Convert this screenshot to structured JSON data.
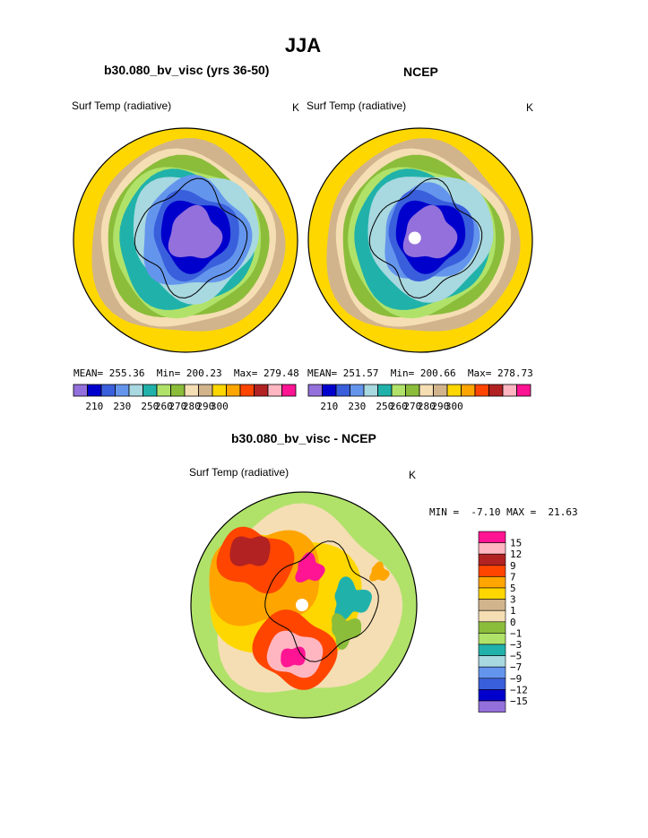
{
  "page": {
    "title": "JJA"
  },
  "panels": [
    {
      "heading": "b30.080_bv_visc (yrs 36-50)",
      "field": "Surf Temp (radiative)",
      "units": "K",
      "stats": {
        "mean_label": "MEAN=",
        "mean": "255.36",
        "min_label": "Min=",
        "min": "200.23",
        "max_label": "Max=",
        "max": "279.48"
      }
    },
    {
      "heading": "NCEP",
      "field": "Surf Temp (radiative)",
      "units": "K",
      "stats": {
        "mean_label": "MEAN=",
        "mean": "251.57",
        "min_label": "Min=",
        "min": "200.66",
        "max_label": "Max=",
        "max": "278.73"
      }
    }
  ],
  "diff_panel": {
    "heading": "b30.080_bv_visc - NCEP",
    "field": "Surf Temp (radiative)",
    "units": "K",
    "min_label": "MIN =",
    "min": "-7.10",
    "max_label": "MAX =",
    "max": "21.63"
  },
  "chart_data": [
    {
      "type": "heatmap",
      "projection": "south polar stereographic",
      "title": "b30.080_bv_visc (yrs 36-50)",
      "field": "Surf Temp (radiative)",
      "units": "K",
      "mean": 255.36,
      "min": 200.23,
      "max": 279.48,
      "colorbar": {
        "tick_labels": [
          "210",
          "230",
          "250",
          "260",
          "270",
          "280",
          "290",
          "300"
        ],
        "colors": [
          "#9370db",
          "#0000cd",
          "#3a5fdc",
          "#6495ed",
          "#a8d8e0",
          "#20b2aa",
          "#b0e26a",
          "#8bbd3b",
          "#f5deb3",
          "#d2b48c",
          "#ffd700",
          "#ffa500",
          "#ff4500",
          "#b22222",
          "#ffb6c1",
          "#ff1493"
        ]
      }
    },
    {
      "type": "heatmap",
      "projection": "south polar stereographic",
      "title": "NCEP",
      "field": "Surf Temp (radiative)",
      "units": "K",
      "mean": 251.57,
      "min": 200.66,
      "max": 278.73,
      "colorbar": {
        "tick_labels": [
          "210",
          "230",
          "250",
          "260",
          "270",
          "280",
          "290",
          "300"
        ],
        "colors": [
          "#9370db",
          "#0000cd",
          "#3a5fdc",
          "#6495ed",
          "#a8d8e0",
          "#20b2aa",
          "#b0e26a",
          "#8bbd3b",
          "#f5deb3",
          "#d2b48c",
          "#ffd700",
          "#ffa500",
          "#ff4500",
          "#b22222",
          "#ffb6c1",
          "#ff1493"
        ]
      }
    },
    {
      "type": "heatmap",
      "projection": "south polar stereographic",
      "title": "b30.080_bv_visc - NCEP",
      "field": "Surf Temp (radiative)",
      "units": "K",
      "min": -7.1,
      "max": 21.63,
      "colorbar": {
        "tick_labels": [
          "15",
          "12",
          "9",
          "7",
          "5",
          "3",
          "1",
          "0",
          "−1",
          "−3",
          "−5",
          "−7",
          "−9",
          "−12",
          "−15"
        ],
        "colors": [
          "#ff1493",
          "#ffb6c1",
          "#b22222",
          "#ff4500",
          "#ffa500",
          "#ffd700",
          "#d2b48c",
          "#f5deb3",
          "#8bbd3b",
          "#b0e26a",
          "#20b2aa",
          "#a8d8e0",
          "#6495ed",
          "#3a5fdc",
          "#0000cd",
          "#9370db"
        ]
      }
    }
  ]
}
